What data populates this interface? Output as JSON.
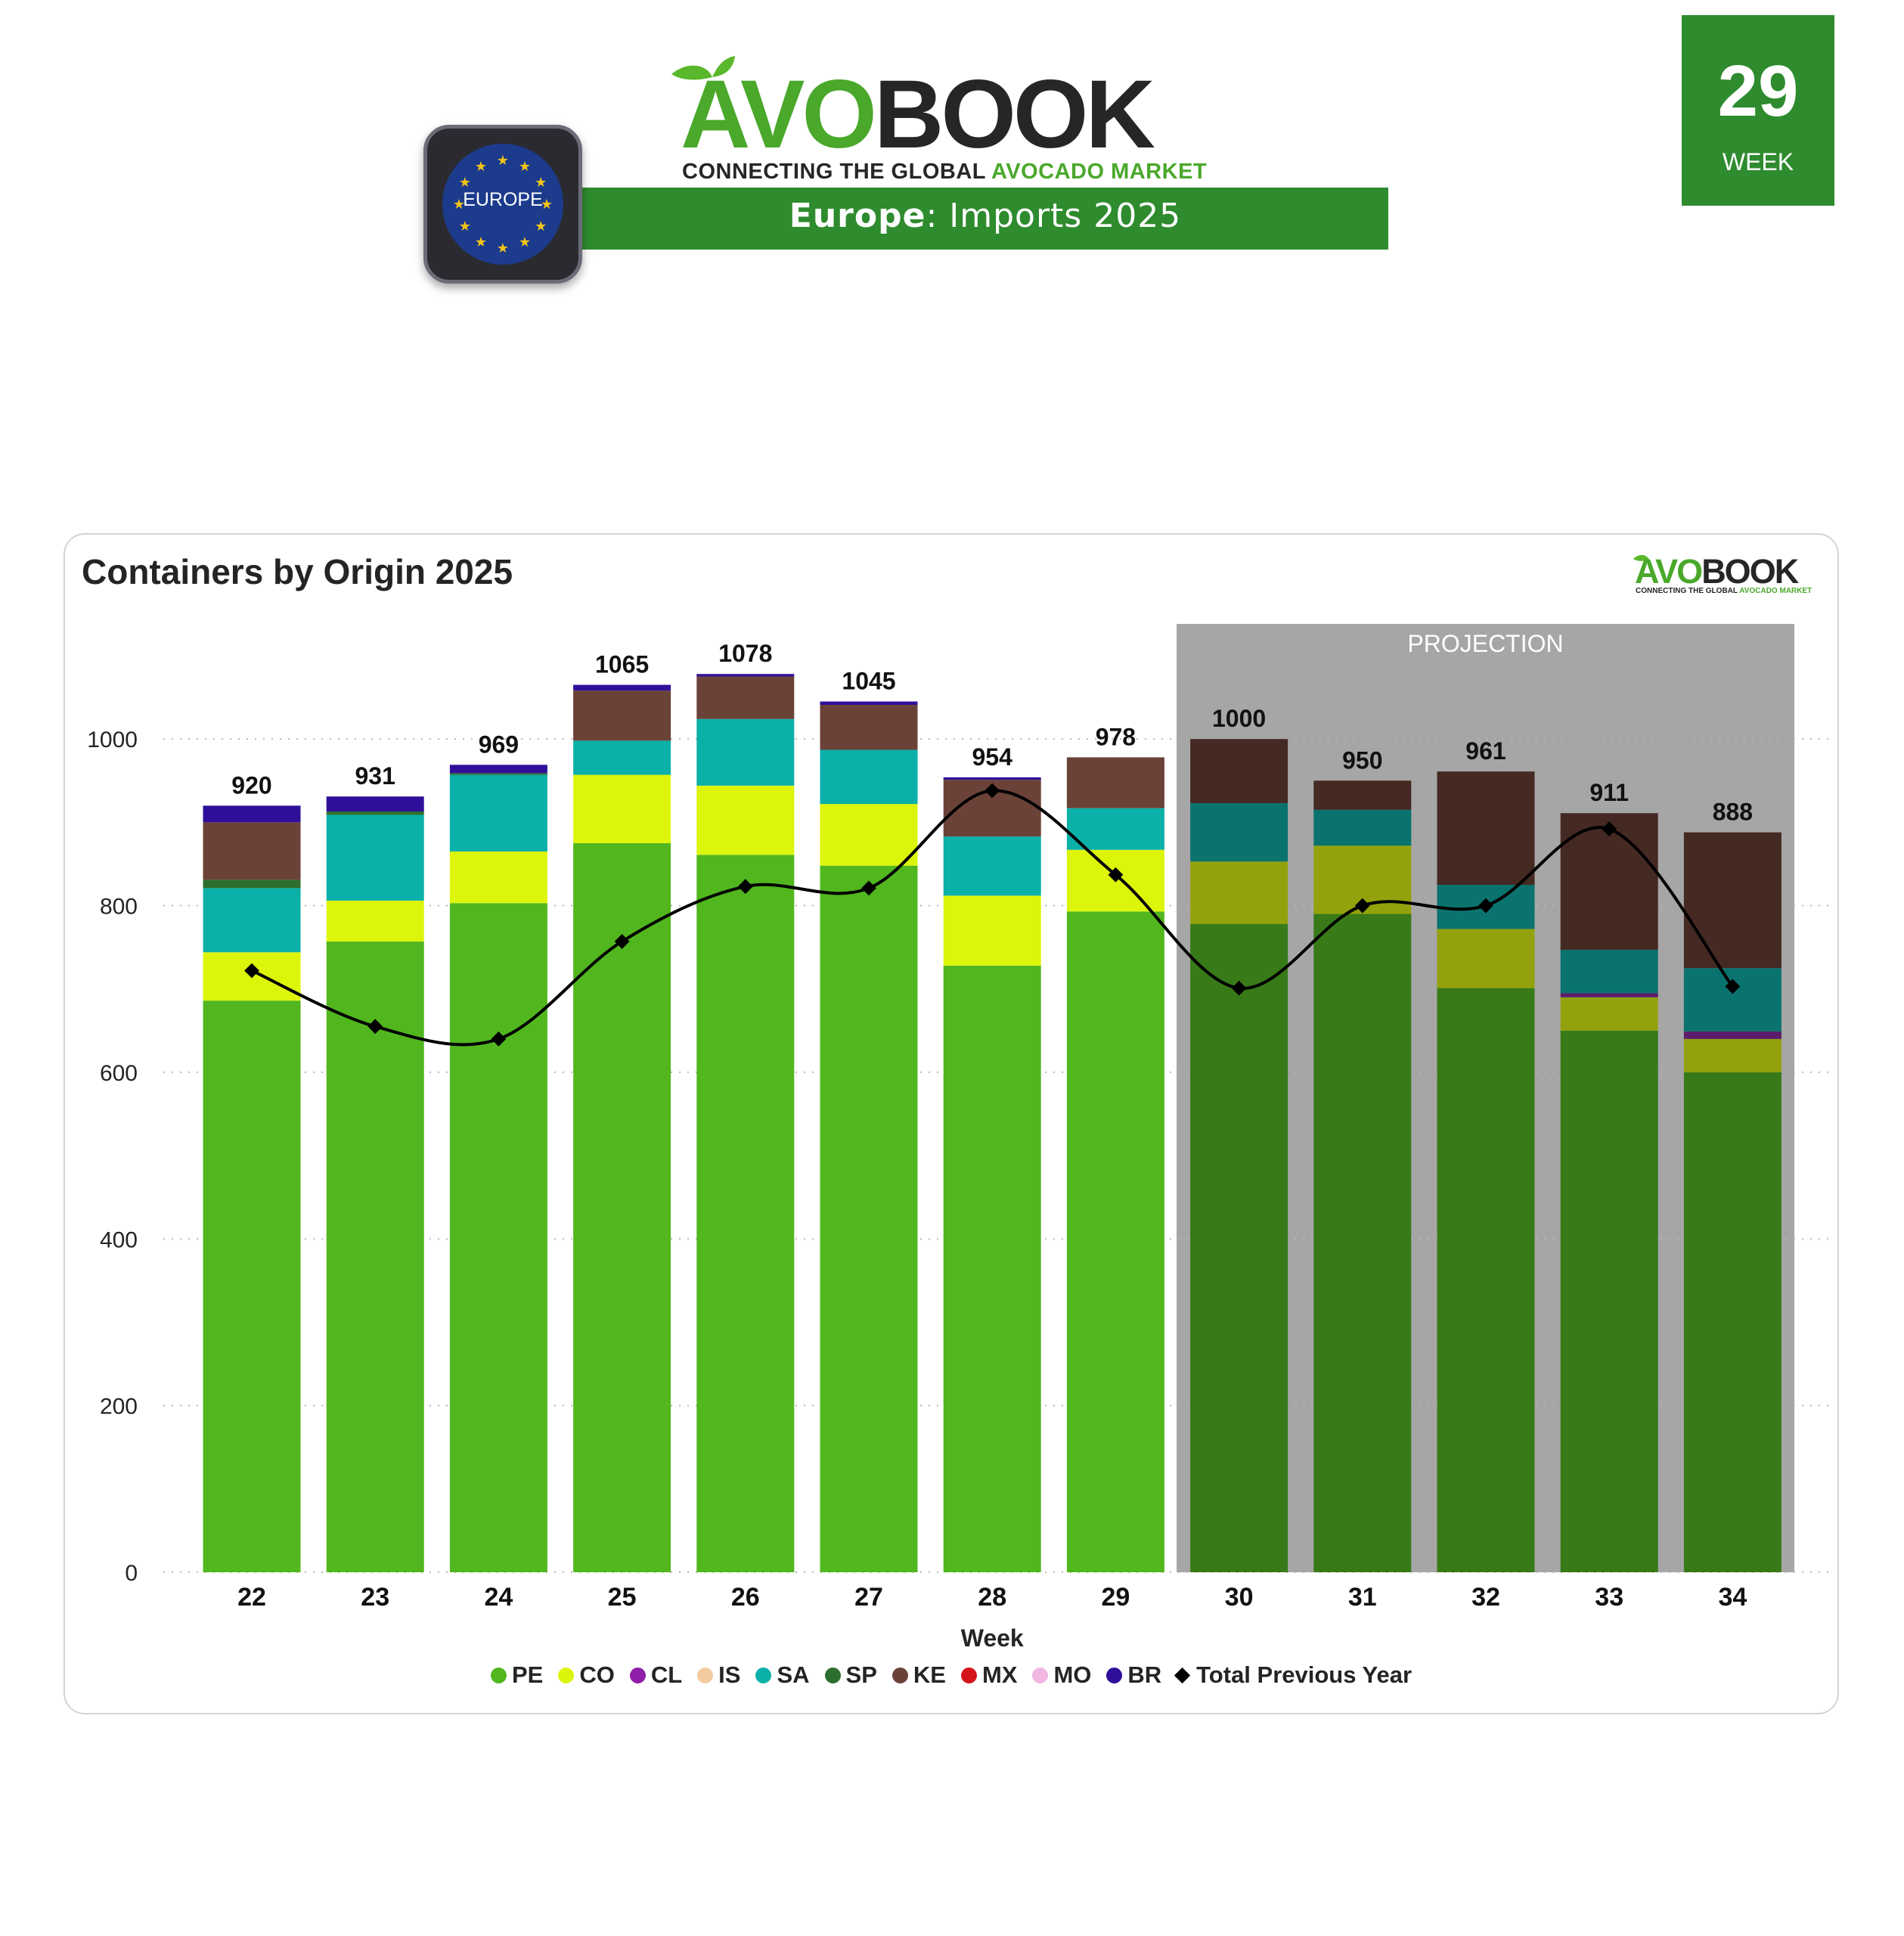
{
  "header": {
    "brand_prefix": "AVO",
    "brand_suffix": "BOOK",
    "tagline_prefix": "CONNECTING THE GLOBAL ",
    "tagline_highlight": "AVOCADO MARKET",
    "region_badge": "EUROPE",
    "title_region": "Europe",
    "title_rest": ": Imports 2025",
    "week_number": "29",
    "week_label": "WEEK"
  },
  "colors": {
    "brand_green": "#2e8b2e",
    "projection_bg": "#a6a6a6"
  },
  "chart_data": {
    "type": "bar",
    "stacked": true,
    "title": "Containers by Origin 2025",
    "xlabel": "Week",
    "ylabel": "",
    "ylim": [
      0,
      1100
    ],
    "yticks": [
      0,
      200,
      400,
      600,
      800,
      1000
    ],
    "categories": [
      "22",
      "23",
      "24",
      "25",
      "26",
      "27",
      "28",
      "29",
      "30",
      "31",
      "32",
      "33",
      "34"
    ],
    "projection_label": "PROJECTION",
    "projection_categories": [
      "30",
      "31",
      "32",
      "33",
      "34"
    ],
    "totals": [
      920,
      931,
      969,
      1065,
      1078,
      1045,
      954,
      978,
      1000,
      950,
      961,
      911,
      888
    ],
    "series": [
      {
        "name": "PE",
        "color": "#52b71e",
        "projection_color": "#377a17",
        "values": [
          686,
          757,
          803,
          875,
          861,
          848,
          728,
          793,
          778,
          790,
          701,
          650,
          600
        ]
      },
      {
        "name": "CO",
        "color": "#ddf50b",
        "projection_color": "#93a20c",
        "values": [
          58,
          49,
          62,
          82,
          83,
          74,
          84,
          74,
          75,
          82,
          71,
          40,
          40
        ]
      },
      {
        "name": "CL",
        "color": "#8f1ea8",
        "projection_color": "#5c1c6c",
        "values": [
          0,
          0,
          0,
          0,
          0,
          0,
          0,
          0,
          0,
          0,
          0,
          5,
          9
        ]
      },
      {
        "name": "IS",
        "color": "#f4cba0",
        "projection_color": "#a38a6c",
        "values": [
          0,
          0,
          0,
          0,
          0,
          0,
          0,
          0,
          0,
          0,
          0,
          0,
          0
        ]
      },
      {
        "name": "SA",
        "color": "#0bb0a8",
        "projection_color": "#0a736e",
        "values": [
          77,
          103,
          92,
          41,
          80,
          65,
          71,
          50,
          70,
          43,
          53,
          52,
          76
        ]
      },
      {
        "name": "SP",
        "color": "#2e6e2e",
        "projection_color": "#1f4a1f",
        "values": [
          10,
          4,
          2,
          0,
          0,
          0,
          0,
          0,
          0,
          0,
          0,
          0,
          0
        ]
      },
      {
        "name": "KE",
        "color": "#6b4238",
        "projection_color": "#452923",
        "values": [
          69,
          0,
          0,
          60,
          51,
          54,
          68,
          61,
          77,
          35,
          136,
          164,
          163
        ]
      },
      {
        "name": "MX",
        "color": "#d3151b",
        "projection_color": "#8a1114",
        "values": [
          0,
          0,
          0,
          0,
          0,
          0,
          0,
          0,
          0,
          0,
          0,
          0,
          0
        ]
      },
      {
        "name": "MO",
        "color": "#f2b6e3",
        "projection_color": "#a07894",
        "values": [
          0,
          0,
          0,
          0,
          0,
          0,
          0,
          0,
          0,
          0,
          0,
          0,
          0
        ]
      },
      {
        "name": "BR",
        "color": "#2f0f9a",
        "projection_color": "#200a66",
        "values": [
          20,
          18,
          10,
          7,
          3,
          4,
          3,
          0,
          0,
          0,
          0,
          0,
          0
        ]
      }
    ],
    "line_series": {
      "name": "Total Previous Year",
      "color": "#000000",
      "values": [
        722,
        655,
        640,
        757,
        823,
        821,
        938,
        837,
        701,
        800,
        800,
        892,
        703
      ]
    }
  }
}
